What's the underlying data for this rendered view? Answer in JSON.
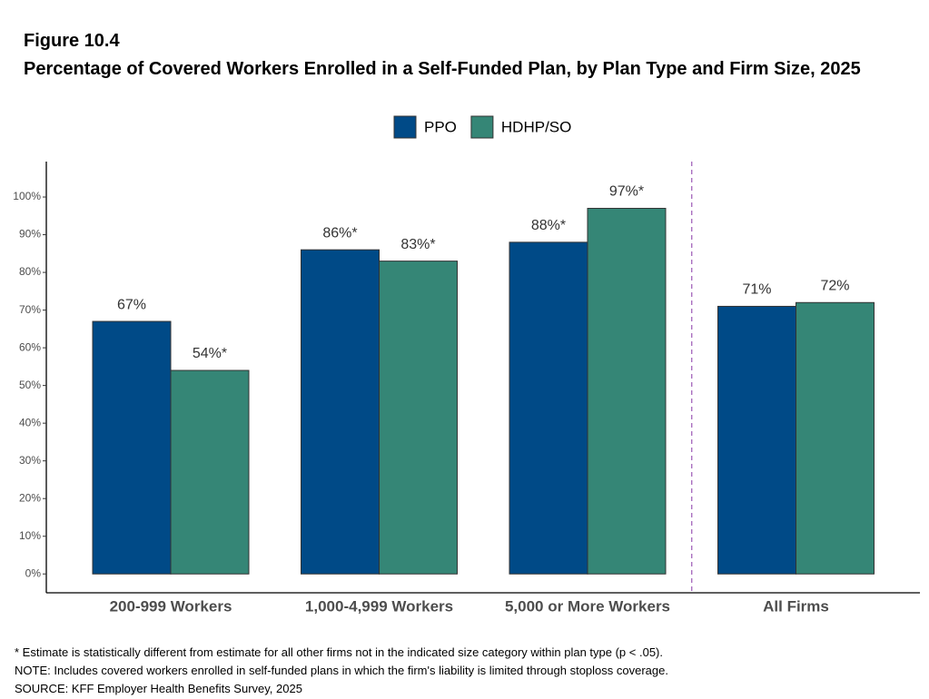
{
  "chart_data": {
    "type": "bar",
    "title": "Figure 10.4",
    "subtitle": "Percentage of Covered Workers Enrolled in a Self-Funded Plan, by Plan Type and Firm Size, 2025",
    "categories": [
      "200-999 Workers",
      "1,000-4,999 Workers",
      "5,000 or More Workers",
      "All Firms"
    ],
    "series": [
      {
        "name": "PPO",
        "color": "#004a87",
        "values": [
          67,
          86,
          88,
          71
        ],
        "value_labels": [
          "67%",
          "86%*",
          "88%*",
          "71%"
        ]
      },
      {
        "name": "HDHP/SO",
        "color": "#358676",
        "values": [
          54,
          83,
          97,
          72
        ],
        "value_labels": [
          "54%*",
          "83%*",
          "97%*",
          "72%"
        ]
      }
    ],
    "ylim": [
      -5,
      109.4
    ],
    "yticks": [
      {
        "value": 0,
        "label": "0%"
      },
      {
        "value": 10,
        "label": "10%"
      },
      {
        "value": 20,
        "label": "20%"
      },
      {
        "value": 30,
        "label": "30%"
      },
      {
        "value": 40,
        "label": "40%"
      },
      {
        "value": 50,
        "label": "50%"
      },
      {
        "value": 60,
        "label": "60%"
      },
      {
        "value": 70,
        "label": "70%"
      },
      {
        "value": 80,
        "label": "80%"
      },
      {
        "value": 90,
        "label": "90%"
      },
      {
        "value": 100,
        "label": "100%"
      }
    ],
    "legend": "top",
    "notes": [
      "* Estimate is statistically different from estimate for all other firms not in the indicated size category within plan type (p < .05).",
      "NOTE: Includes covered workers enrolled in self-funded plans in which the firm's liability is limited through stoploss coverage.",
      "SOURCE: KFF Employer Health Benefits Survey, 2025"
    ]
  }
}
